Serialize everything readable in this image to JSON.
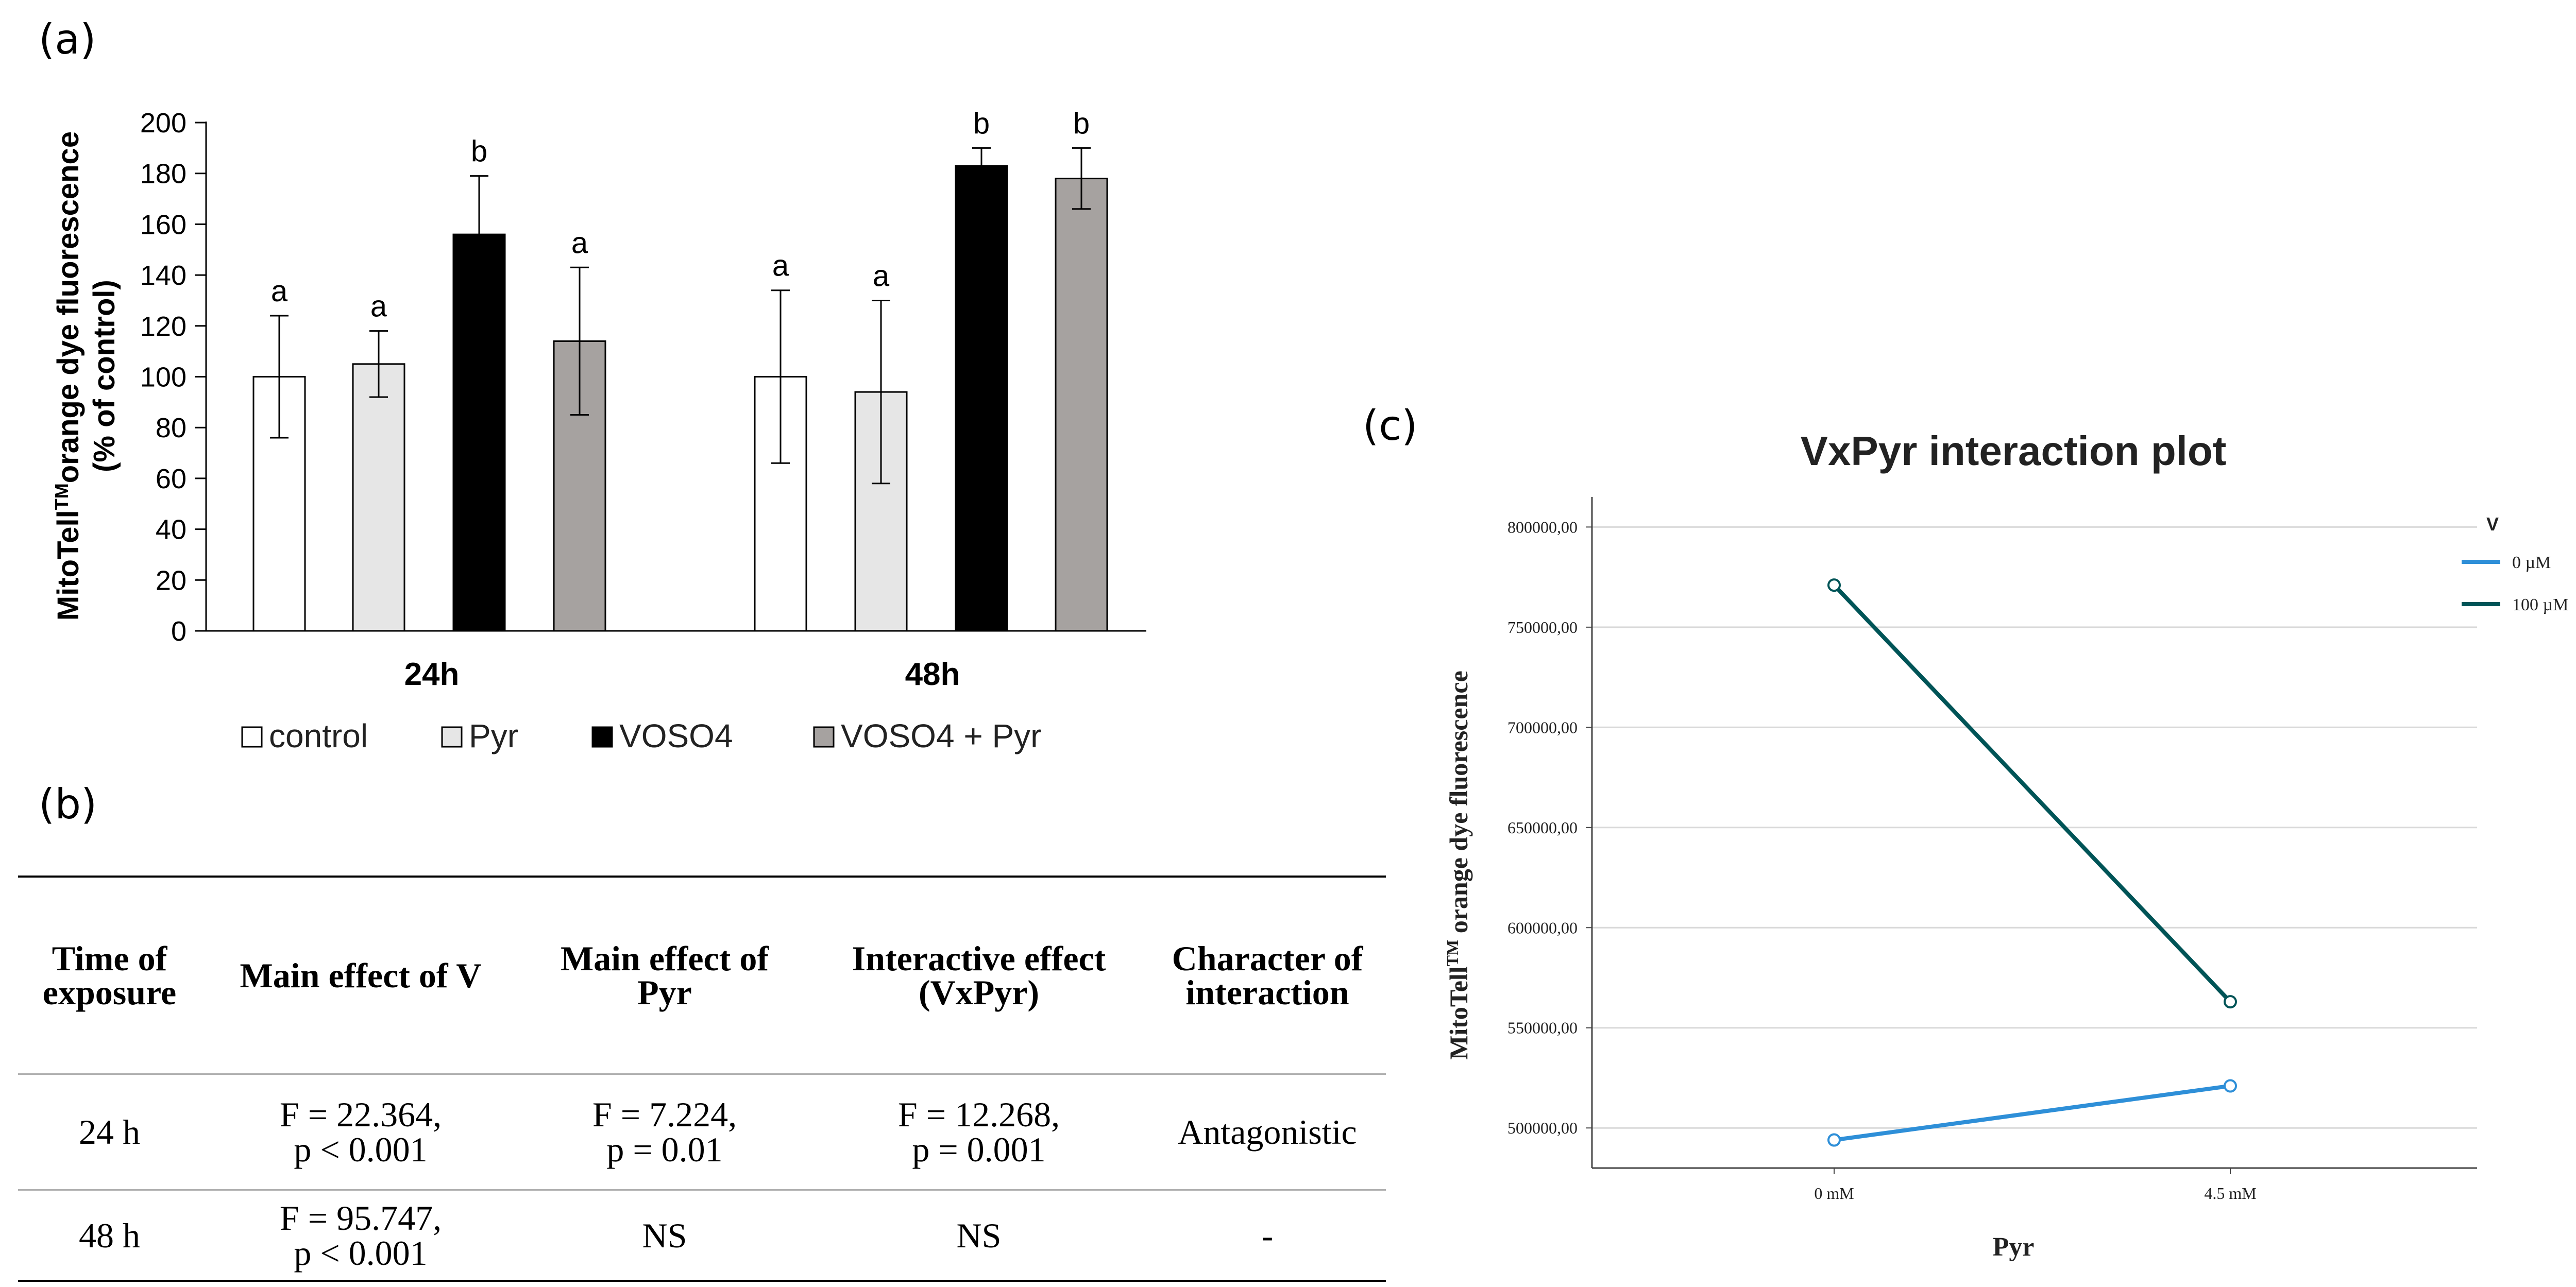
{
  "panels": {
    "a": "(a)",
    "b": "(b)",
    "c": "(c)"
  },
  "colors": {
    "control": "#ffffff",
    "Pyr": "#e6e6e6",
    "VOSO4": "#000000",
    "VOSO4_Pyr": "#a6a2a0",
    "line_0uM": "#2e8fd8",
    "line_100uM": "#005457"
  },
  "chart_data": [
    {
      "type": "bar",
      "panel": "a",
      "title": "",
      "ylabel_line1_pre": "MitoTell",
      "ylabel_line1_sup": "TM",
      "ylabel_line1_post": "orange dye fluorescence",
      "ylabel_line2": "(% of control)",
      "xlabel": "",
      "ylim": [
        0,
        200
      ],
      "yticks": [
        "0",
        "20",
        "40",
        "60",
        "80",
        "100",
        "120",
        "140",
        "160",
        "180",
        "200"
      ],
      "categories": [
        "24h",
        "48h"
      ],
      "series": [
        {
          "name": "control",
          "values": [
            100,
            100
          ],
          "errors": [
            24,
            34
          ],
          "letters": [
            "a",
            "a"
          ]
        },
        {
          "name": "Pyr",
          "values": [
            105,
            94
          ],
          "errors": [
            13,
            36
          ],
          "letters": [
            "a",
            "a"
          ]
        },
        {
          "name": "VOSO4",
          "values": [
            156,
            183
          ],
          "errors": [
            23,
            7
          ],
          "letters": [
            "b",
            "b"
          ]
        },
        {
          "name": "VOSO4 + Pyr",
          "values": [
            114,
            178
          ],
          "errors": [
            29,
            12
          ],
          "letters": [
            "a",
            "b"
          ]
        }
      ],
      "legend": [
        "control",
        "Pyr",
        "VOSO4",
        "VOSO4 + Pyr"
      ]
    },
    {
      "type": "line",
      "panel": "c",
      "title": "VxPyr interaction plot",
      "xlabel": "Pyr",
      "ylabel_pre": "MitoTell",
      "ylabel_sup": "TM",
      "ylabel_post": " orange dye fluorescence",
      "categories": [
        "0 mM",
        "4.5 mM"
      ],
      "ylim": [
        480000,
        815000
      ],
      "yticks": [
        500000,
        550000,
        600000,
        650000,
        700000,
        750000,
        800000
      ],
      "ytick_labels": [
        "500000,00",
        "550000,00",
        "600000,00",
        "650000,00",
        "700000,00",
        "750000,00",
        "800000,00"
      ],
      "legend_title": "V",
      "series": [
        {
          "name": "0 µM",
          "values": [
            494000,
            521000
          ]
        },
        {
          "name": "100 µM",
          "values": [
            771000,
            563000
          ]
        }
      ]
    }
  ],
  "table": {
    "headers": [
      "Time of exposure",
      "Main effect of V",
      "Main effect of Pyr",
      "Interactive effect (VxPyr)",
      "Character of interaction"
    ],
    "rows": [
      [
        [
          "24 h"
        ],
        [
          "F = 22.364,",
          "p < 0.001"
        ],
        [
          "F = 7.224,",
          "p = 0.01"
        ],
        [
          "F = 12.268,",
          "p = 0.001"
        ],
        [
          "Antagonistic"
        ]
      ],
      [
        [
          "48 h"
        ],
        [
          "F = 95.747,",
          "p < 0.001"
        ],
        [
          "NS"
        ],
        [
          "NS"
        ],
        [
          "-"
        ]
      ]
    ]
  }
}
